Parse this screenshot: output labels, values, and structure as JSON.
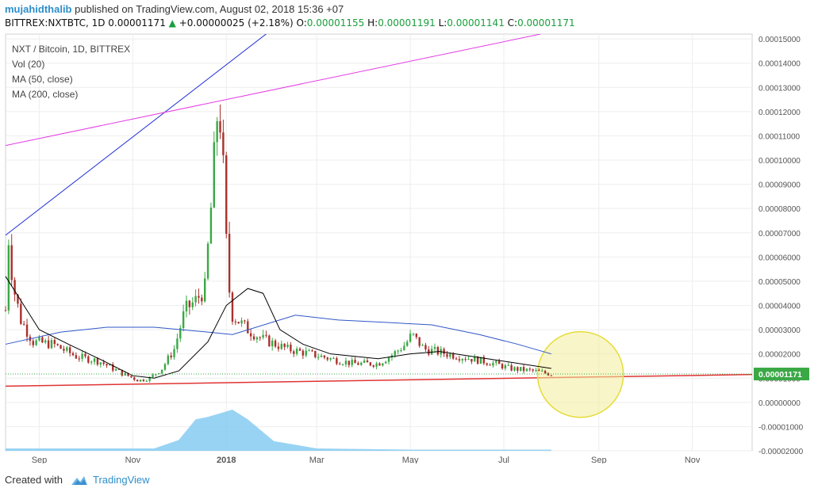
{
  "header": {
    "author": "mujahidthalib",
    "published_text": "published on TradingView.com, August 02, 2018 15:36 +07",
    "symbol_line": "BITTREX:NXTBTC, 1D",
    "last": "0.00001171",
    "change": "+0.00000025 (+2.18%)",
    "o_label": "O:",
    "o": "0.00001155",
    "h_label": "H:",
    "h": "0.00001191",
    "l_label": "L:",
    "l": "0.00001141",
    "c_label": "C:",
    "c": "0.00001171"
  },
  "legend": {
    "title": "NXT / Bitcoin, 1D, BITTREX",
    "vol": "Vol (20)",
    "ma50": "MA (50, close)",
    "ma200": "MA (200, close)"
  },
  "price_tag": "0.00001171",
  "footer": {
    "created_with": "Created with",
    "brand": "TradingView"
  },
  "colors": {
    "up": "#3aa845",
    "down": "#a8312c",
    "ma50": "#000000",
    "ma200": "#2f56c8",
    "trend_blue": "#1f2fd8",
    "trend_magenta": "#e43be4",
    "support": "#e03333",
    "volume": "#7ec8f0",
    "circle": "#f2ee9a"
  },
  "chart_data": {
    "type": "candlestick",
    "x_tick_labels": [
      "Sep",
      "Nov",
      "2018",
      "Mar",
      "May",
      "Jul",
      "Sep",
      "Nov"
    ],
    "y_tick_labels": [
      "0.00015000",
      "0.00014000",
      "0.00013000",
      "0.00012000",
      "0.00011000",
      "0.00010000",
      "0.00009000",
      "0.00008000",
      "0.00007000",
      "0.00006000",
      "0.00005000",
      "0.00004000",
      "0.00003000",
      "0.00002000",
      "0.00001000",
      "0.00000000",
      "-0.00001000",
      "-0.00002000"
    ],
    "ylim": [
      -2e-05,
      0.000152
    ],
    "close_series": [
      [
        "2017-08-10",
        3.8e-05
      ],
      [
        "2017-08-12",
        6.8e-05
      ],
      [
        "2017-08-15",
        4.8e-05
      ],
      [
        "2017-08-20",
        3.4e-05
      ],
      [
        "2017-08-28",
        2.5e-05
      ],
      [
        "2017-09-10",
        2.4e-05
      ],
      [
        "2017-09-25",
        1.9e-05
      ],
      [
        "2017-10-10",
        1.7e-05
      ],
      [
        "2017-10-25",
        1.2e-05
      ],
      [
        "2017-11-05",
        9e-06
      ],
      [
        "2017-11-12",
        1e-05
      ],
      [
        "2017-11-20",
        1.4e-05
      ],
      [
        "2017-11-28",
        2.2e-05
      ],
      [
        "2017-12-05",
        3.8e-05
      ],
      [
        "2017-12-12",
        4.2e-05
      ],
      [
        "2017-12-18",
        4.7e-05
      ],
      [
        "2017-12-22",
        8e-05
      ],
      [
        "2017-12-27",
        0.000128
      ],
      [
        "2017-12-30",
        9.5e-05
      ],
      [
        "2018-01-02",
        5.1e-05
      ],
      [
        "2018-01-05",
        3.6e-05
      ],
      [
        "2018-01-15",
        3e-05
      ],
      [
        "2018-01-25",
        2.6e-05
      ],
      [
        "2018-02-10",
        2.2e-05
      ],
      [
        "2018-02-25",
        2e-05
      ],
      [
        "2018-03-10",
        1.8e-05
      ],
      [
        "2018-03-25",
        1.6e-05
      ],
      [
        "2018-04-10",
        1.6e-05
      ],
      [
        "2018-04-20",
        2e-05
      ],
      [
        "2018-04-28",
        2.4e-05
      ],
      [
        "2018-05-02",
        2.8e-05
      ],
      [
        "2018-05-10",
        2.2e-05
      ],
      [
        "2018-05-25",
        2e-05
      ],
      [
        "2018-06-10",
        1.8e-05
      ],
      [
        "2018-06-25",
        1.6e-05
      ],
      [
        "2018-07-05",
        1.4e-05
      ],
      [
        "2018-07-20",
        1.3e-05
      ],
      [
        "2018-08-01",
        1.17e-05
      ]
    ],
    "ma50": [
      [
        "2017-08-10",
        5.2e-05
      ],
      [
        "2017-09-01",
        3e-05
      ],
      [
        "2017-09-20",
        2.4e-05
      ],
      [
        "2017-10-10",
        1.8e-05
      ],
      [
        "2017-11-01",
        1.1e-05
      ],
      [
        "2017-11-15",
        1e-05
      ],
      [
        "2017-12-01",
        1.3e-05
      ],
      [
        "2017-12-20",
        2.5e-05
      ],
      [
        "2018-01-01",
        4e-05
      ],
      [
        "2018-01-15",
        4.7e-05
      ],
      [
        "2018-01-25",
        4.5e-05
      ],
      [
        "2018-02-05",
        3e-05
      ],
      [
        "2018-02-20",
        2.4e-05
      ],
      [
        "2018-03-10",
        2e-05
      ],
      [
        "2018-04-10",
        1.8e-05
      ],
      [
        "2018-05-01",
        2e-05
      ],
      [
        "2018-05-20",
        2.1e-05
      ],
      [
        "2018-06-10",
        1.9e-05
      ],
      [
        "2018-07-01",
        1.7e-05
      ],
      [
        "2018-08-01",
        1.4e-05
      ]
    ],
    "ma200": [
      [
        "2017-08-10",
        2.4e-05
      ],
      [
        "2017-09-15",
        2.9e-05
      ],
      [
        "2017-10-15",
        3.1e-05
      ],
      [
        "2017-11-15",
        3.1e-05
      ],
      [
        "2017-12-20",
        2.9e-05
      ],
      [
        "2018-01-05",
        2.8e-05
      ],
      [
        "2018-02-15",
        3.6e-05
      ],
      [
        "2018-03-15",
        3.4e-05
      ],
      [
        "2018-04-15",
        3.3e-05
      ],
      [
        "2018-05-15",
        3.2e-05
      ],
      [
        "2018-06-15",
        2.8e-05
      ],
      [
        "2018-07-10",
        2.4e-05
      ],
      [
        "2018-08-01",
        2e-05
      ]
    ],
    "volume_area": [
      [
        "2017-08-10",
        1e-06
      ],
      [
        "2017-10-01",
        1e-06
      ],
      [
        "2017-11-15",
        1e-06
      ],
      [
        "2017-12-01",
        4.5e-06
      ],
      [
        "2017-12-12",
        1.3e-05
      ],
      [
        "2017-12-20",
        1.4e-05
      ],
      [
        "2018-01-05",
        1.7e-05
      ],
      [
        "2018-01-15",
        1.3e-05
      ],
      [
        "2018-02-01",
        4e-06
      ],
      [
        "2018-03-01",
        1e-06
      ],
      [
        "2018-05-01",
        5e-07
      ],
      [
        "2018-08-01",
        5e-07
      ]
    ],
    "trendlines": [
      {
        "name": "blue",
        "from": [
          "2017-08-10",
          6.9e-05
        ],
        "to": [
          "2018-03-15",
          0.000175
        ]
      },
      {
        "name": "magenta",
        "from": [
          "2017-08-10",
          0.000106
        ],
        "to": [
          "2018-07-25",
          0.000152
        ]
      },
      {
        "name": "support",
        "from": [
          "2017-08-10",
          6.7e-06
        ],
        "to": [
          "2018-12-10",
          1.15e-05
        ]
      }
    ],
    "highlight": {
      "center": [
        "2018-08-20",
        1.15e-05
      ],
      "radius_days": 28
    },
    "last_price": 1.171e-05,
    "grid": true,
    "legend_position": "top-left"
  }
}
